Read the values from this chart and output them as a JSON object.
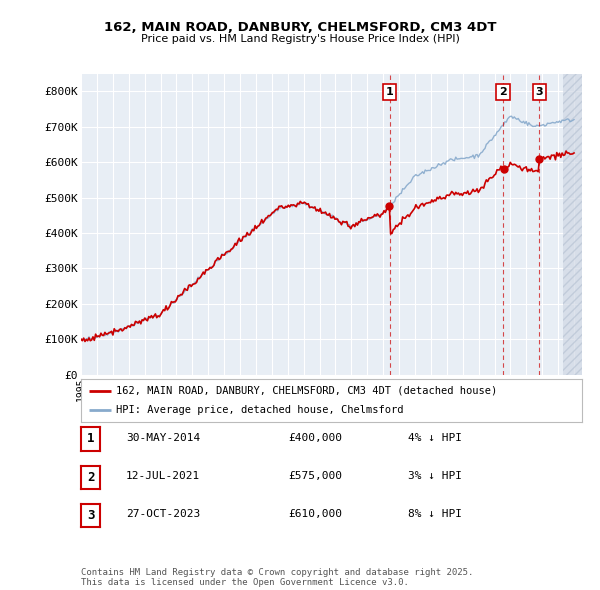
{
  "title": "162, MAIN ROAD, DANBURY, CHELMSFORD, CM3 4DT",
  "subtitle": "Price paid vs. HM Land Registry's House Price Index (HPI)",
  "ylim": [
    0,
    850000
  ],
  "yticks": [
    0,
    100000,
    200000,
    300000,
    400000,
    500000,
    600000,
    700000,
    800000
  ],
  "ytick_labels": [
    "£0",
    "£100K",
    "£200K",
    "£300K",
    "£400K",
    "£500K",
    "£600K",
    "£700K",
    "£800K"
  ],
  "xlim_start": 1995.0,
  "xlim_end": 2026.5,
  "background_color": "#ffffff",
  "plot_bg_color": "#e8eef5",
  "grid_color": "#ffffff",
  "sale_color": "#cc0000",
  "hpi_color": "#88aacc",
  "annotation_color": "#cc0000",
  "hatch_color": "#c0c8d8",
  "purchases": [
    {
      "label": "1",
      "date": 2014.41,
      "price": 400000
    },
    {
      "label": "2",
      "date": 2021.53,
      "price": 575000
    },
    {
      "label": "3",
      "date": 2023.82,
      "price": 610000
    }
  ],
  "table_rows": [
    {
      "num": "1",
      "date": "30-MAY-2014",
      "price": "£400,000",
      "pct": "4% ↓ HPI"
    },
    {
      "num": "2",
      "date": "12-JUL-2021",
      "price": "£575,000",
      "pct": "3% ↓ HPI"
    },
    {
      "num": "3",
      "date": "27-OCT-2023",
      "price": "£610,000",
      "pct": "8% ↓ HPI"
    }
  ],
  "legend_entries": [
    "162, MAIN ROAD, DANBURY, CHELMSFORD, CM3 4DT (detached house)",
    "HPI: Average price, detached house, Chelmsford"
  ],
  "footer_text": "Contains HM Land Registry data © Crown copyright and database right 2025.\nThis data is licensed under the Open Government Licence v3.0."
}
